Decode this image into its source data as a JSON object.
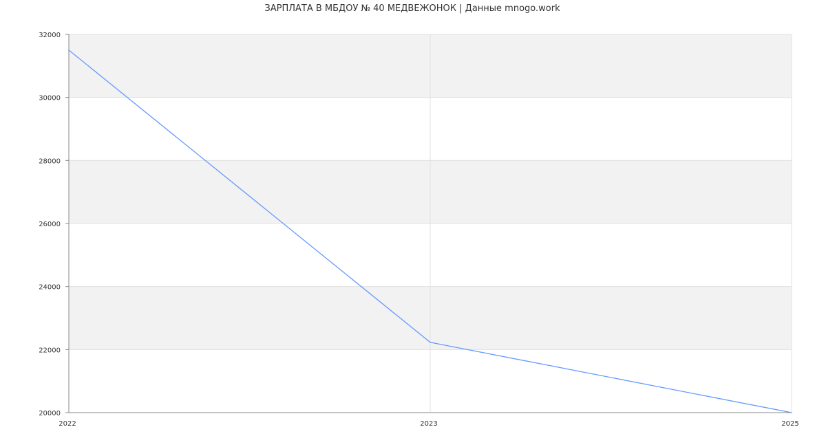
{
  "chart_data": {
    "type": "line",
    "title": "ЗАРПЛАТА В МБДОУ № 40 МЕДВЕЖОНОК | Данные mnogo.work",
    "categories": [
      "2022",
      "2023",
      "2025"
    ],
    "series": [
      {
        "values": [
          31500,
          22230,
          20000
        ],
        "color": "#6699ff"
      }
    ],
    "ylim": [
      20000,
      32000
    ],
    "yticks": [
      "20000",
      "22000",
      "24000",
      "26000",
      "28000",
      "30000",
      "32000"
    ],
    "xlabel": "",
    "ylabel": "",
    "grid": true,
    "band_color": "#f2f2f2",
    "grid_color": "#e0e0e0"
  }
}
